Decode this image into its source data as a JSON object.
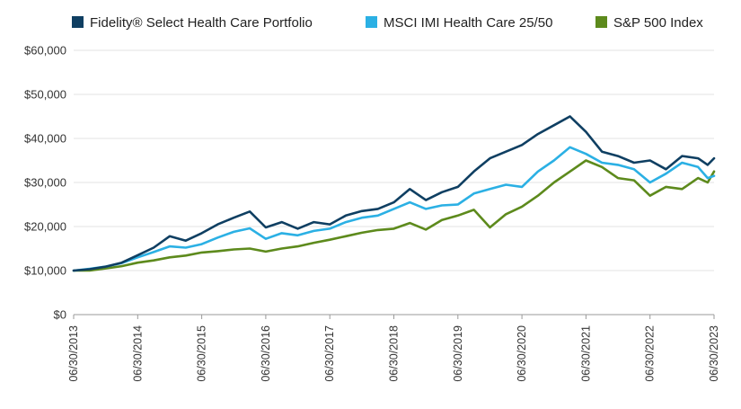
{
  "chart_data": {
    "type": "line",
    "title": "",
    "xlabel": "",
    "ylabel": "",
    "ylim": [
      0,
      60000
    ],
    "yticks": [
      0,
      10000,
      20000,
      30000,
      40000,
      50000,
      60000
    ],
    "ytick_labels": [
      "$0",
      "$10,000",
      "$20,000",
      "$30,000",
      "$40,000",
      "$50,000",
      "$60,000"
    ],
    "xticks": [
      2013.5,
      2014.5,
      2015.5,
      2016.5,
      2017.5,
      2018.5,
      2019.5,
      2020.5,
      2021.5,
      2022.5,
      2023.5
    ],
    "xtick_labels": [
      "06/30/2013",
      "06/30/2014",
      "06/30/2015",
      "06/30/2016",
      "06/30/2017",
      "06/30/2018",
      "06/30/2019",
      "06/30/2020",
      "06/30/2021",
      "06/30/2022",
      "06/30/2023"
    ],
    "xlim": [
      2013.5,
      2023.5
    ],
    "grid": true,
    "legend_position": "top",
    "series": [
      {
        "name": "Fidelity® Select Health Care Portfolio",
        "color": "#0f3f62",
        "x": [
          2013.5,
          2013.75,
          2014.0,
          2014.25,
          2014.5,
          2014.75,
          2015.0,
          2015.25,
          2015.5,
          2015.75,
          2016.0,
          2016.25,
          2016.5,
          2016.75,
          2017.0,
          2017.25,
          2017.5,
          2017.75,
          2018.0,
          2018.25,
          2018.5,
          2018.75,
          2019.0,
          2019.25,
          2019.5,
          2019.75,
          2020.0,
          2020.25,
          2020.5,
          2020.75,
          2021.0,
          2021.25,
          2021.5,
          2021.75,
          2022.0,
          2022.25,
          2022.5,
          2022.75,
          2023.0,
          2023.25,
          2023.4,
          2023.5
        ],
        "values": [
          10000,
          10300,
          10900,
          11800,
          13500,
          15200,
          17800,
          16800,
          18500,
          20500,
          22000,
          23400,
          19800,
          21000,
          19500,
          21000,
          20500,
          22500,
          23500,
          24000,
          25500,
          28500,
          26000,
          27800,
          29000,
          32500,
          35500,
          37000,
          38500,
          41000,
          43000,
          45000,
          41500,
          37000,
          36000,
          34500,
          35000,
          33000,
          36000,
          35500,
          34000,
          35500
        ]
      },
      {
        "name": "MSCI IMI Health Care 25/50",
        "color": "#2bb0e4",
        "x": [
          2013.5,
          2013.75,
          2014.0,
          2014.25,
          2014.5,
          2014.75,
          2015.0,
          2015.25,
          2015.5,
          2015.75,
          2016.0,
          2016.25,
          2016.5,
          2016.75,
          2017.0,
          2017.25,
          2017.5,
          2017.75,
          2018.0,
          2018.25,
          2018.5,
          2018.75,
          2019.0,
          2019.25,
          2019.5,
          2019.75,
          2020.0,
          2020.25,
          2020.5,
          2020.75,
          2021.0,
          2021.25,
          2021.5,
          2021.75,
          2022.0,
          2022.25,
          2022.5,
          2022.75,
          2023.0,
          2023.25,
          2023.4,
          2023.5
        ],
        "values": [
          10000,
          10400,
          10900,
          11700,
          13000,
          14200,
          15500,
          15200,
          16000,
          17500,
          18800,
          19600,
          17200,
          18500,
          18000,
          19000,
          19500,
          21000,
          22000,
          22500,
          24000,
          25500,
          24000,
          24800,
          25000,
          27500,
          28500,
          29500,
          29000,
          32500,
          35000,
          38000,
          36500,
          34500,
          34000,
          33000,
          30000,
          32000,
          34500,
          33500,
          31000,
          31500
        ]
      },
      {
        "name": "S&P 500 Index",
        "color": "#5d8a1c",
        "x": [
          2013.5,
          2013.75,
          2014.0,
          2014.25,
          2014.5,
          2014.75,
          2015.0,
          2015.25,
          2015.5,
          2015.75,
          2016.0,
          2016.25,
          2016.5,
          2016.75,
          2017.0,
          2017.25,
          2017.5,
          2017.75,
          2018.0,
          2018.25,
          2018.5,
          2018.75,
          2019.0,
          2019.25,
          2019.5,
          2019.75,
          2020.0,
          2020.25,
          2020.5,
          2020.75,
          2021.0,
          2021.25,
          2021.5,
          2021.75,
          2022.0,
          2022.25,
          2022.5,
          2022.75,
          2023.0,
          2023.25,
          2023.4,
          2023.5
        ],
        "values": [
          10000,
          10000,
          10500,
          11000,
          11800,
          12300,
          13000,
          13400,
          14100,
          14400,
          14800,
          15000,
          14300,
          15000,
          15500,
          16300,
          17000,
          17800,
          18600,
          19200,
          19500,
          20800,
          19300,
          21500,
          22500,
          23800,
          19800,
          22800,
          24500,
          27000,
          30000,
          32500,
          35000,
          33500,
          31000,
          30500,
          27000,
          29000,
          28500,
          31000,
          30000,
          32500
        ]
      }
    ]
  }
}
